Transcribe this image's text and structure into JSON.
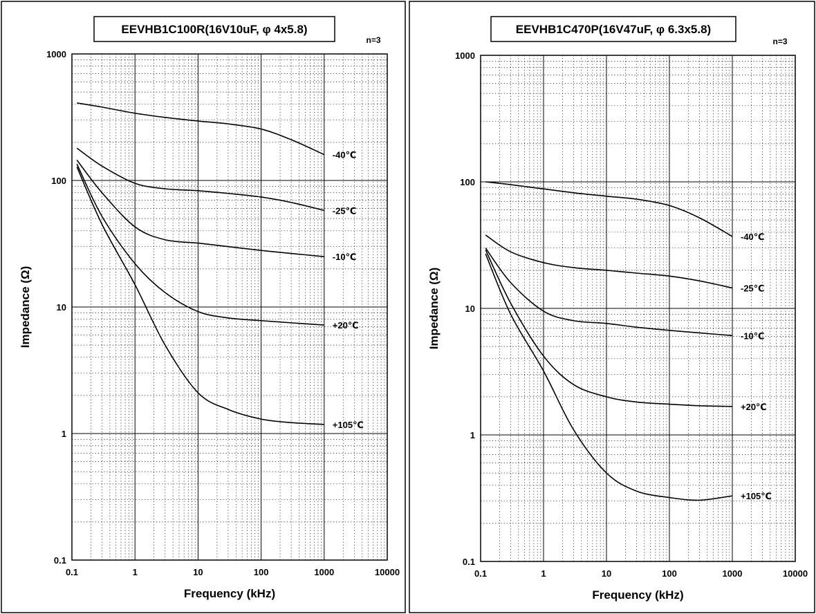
{
  "chart_data": [
    {
      "type": "line",
      "title": "EEVHB1C100R(16V10uF, φ 4x5.8)",
      "note": "n=3",
      "xlabel": "Frequency (kHz)",
      "ylabel": "Impedance (Ω)",
      "xscale": "log",
      "yscale": "log",
      "xlim": [
        0.1,
        10000
      ],
      "ylim": [
        0.1,
        1000
      ],
      "grid": true,
      "x_ticks": [
        "0.1",
        "1",
        "10",
        "100",
        "1000",
        "10000"
      ],
      "y_ticks": [
        "1000",
        "100",
        "10",
        "1",
        "0.1"
      ],
      "series": [
        {
          "name": "-40℃",
          "x": [
            0.12,
            0.3,
            1,
            3,
            10,
            30,
            100,
            300,
            1000
          ],
          "values": [
            410,
            380,
            340,
            315,
            295,
            280,
            255,
            210,
            160
          ]
        },
        {
          "name": "-25℃",
          "x": [
            0.12,
            0.3,
            1,
            3,
            10,
            30,
            100,
            300,
            1000
          ],
          "values": [
            180,
            130,
            95,
            86,
            83,
            79,
            74,
            67,
            58
          ]
        },
        {
          "name": "-10℃",
          "x": [
            0.12,
            0.3,
            1,
            3,
            10,
            30,
            100,
            300,
            1000
          ],
          "values": [
            145,
            80,
            43,
            34,
            32,
            30,
            28,
            26.5,
            25
          ]
        },
        {
          "name": "+20℃",
          "x": [
            0.12,
            0.3,
            1,
            3,
            10,
            30,
            100,
            300,
            1000
          ],
          "values": [
            135,
            52,
            22,
            13,
            9.2,
            8.2,
            7.8,
            7.5,
            7.2
          ]
        },
        {
          "name": "+105℃",
          "x": [
            0.12,
            0.3,
            1,
            3,
            10,
            30,
            100,
            300,
            1000
          ],
          "values": [
            128,
            45,
            15,
            5,
            2.1,
            1.55,
            1.3,
            1.22,
            1.18
          ]
        }
      ]
    },
    {
      "type": "line",
      "title": "EEVHB1C470P(16V47uF, φ 6.3x5.8)",
      "note": "n=3",
      "xlabel": "Frequency (kHz)",
      "ylabel": "Impedance (Ω)",
      "xscale": "log",
      "yscale": "log",
      "xlim": [
        0.1,
        10000
      ],
      "ylim": [
        0.1,
        1000
      ],
      "grid": true,
      "x_ticks": [
        "0.1",
        "1",
        "10",
        "100",
        "1000",
        "10000"
      ],
      "y_ticks": [
        "1000",
        "100",
        "10",
        "1",
        "0.1"
      ],
      "series": [
        {
          "name": "-40℃",
          "x": [
            0.12,
            0.3,
            1,
            3,
            10,
            30,
            100,
            300,
            1000
          ],
          "values": [
            100,
            95,
            88,
            82,
            77,
            73,
            65,
            52,
            37
          ]
        },
        {
          "name": "-25℃",
          "x": [
            0.12,
            0.3,
            1,
            3,
            10,
            30,
            100,
            300,
            1000
          ],
          "values": [
            38,
            28,
            23,
            21,
            20,
            19,
            18,
            16.5,
            14.5
          ]
        },
        {
          "name": "-10℃",
          "x": [
            0.12,
            0.3,
            1,
            3,
            10,
            30,
            100,
            300,
            1000
          ],
          "values": [
            30,
            16,
            9.5,
            8,
            7.6,
            7.1,
            6.7,
            6.4,
            6.1
          ]
        },
        {
          "name": "+20℃",
          "x": [
            0.12,
            0.3,
            1,
            3,
            10,
            30,
            100,
            300,
            1000
          ],
          "values": [
            29,
            11,
            4.2,
            2.5,
            2.0,
            1.82,
            1.75,
            1.7,
            1.68
          ]
        },
        {
          "name": "+105℃",
          "x": [
            0.12,
            0.3,
            1,
            3,
            10,
            30,
            100,
            300,
            1000
          ],
          "values": [
            27,
            9,
            3.2,
            1.1,
            0.5,
            0.36,
            0.32,
            0.305,
            0.33
          ]
        }
      ]
    }
  ]
}
